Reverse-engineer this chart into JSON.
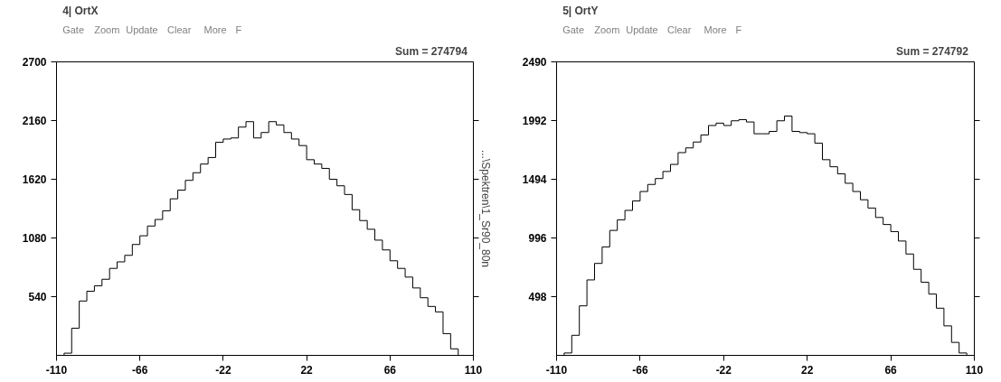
{
  "chart_data": [
    {
      "type": "histogram",
      "title": "4| OrtX",
      "subtitle": "Sum =   274794",
      "y2label": "...\\Spektren\\1_Sr90_80n",
      "annotations": [
        "Gate",
        "Zoom",
        "Update",
        "Clear",
        "More",
        "F"
      ],
      "bins": [
        -110,
        -106,
        -102,
        -98,
        -94,
        -90,
        -86,
        -82,
        -78,
        -74,
        -70,
        -66,
        -62,
        -58,
        -54,
        -50,
        -46,
        -42,
        -38,
        -34,
        -30,
        -26,
        -22,
        -18,
        -14,
        -10,
        -6,
        -2,
        2,
        6,
        10,
        14,
        18,
        22,
        26,
        30,
        34,
        38,
        42,
        46,
        50,
        54,
        58,
        62,
        66,
        70,
        74,
        78,
        82,
        86,
        90,
        94,
        98,
        102,
        106,
        110
      ],
      "values": [
        0,
        20,
        250,
        500,
        590,
        640,
        700,
        800,
        860,
        920,
        1020,
        1100,
        1190,
        1250,
        1330,
        1440,
        1520,
        1610,
        1680,
        1760,
        1820,
        1960,
        1990,
        2000,
        2100,
        2150,
        2000,
        2050,
        2150,
        2120,
        2050,
        1990,
        1930,
        1800,
        1760,
        1720,
        1620,
        1560,
        1480,
        1340,
        1240,
        1160,
        1060,
        970,
        870,
        800,
        720,
        620,
        530,
        450,
        400,
        200,
        60,
        0,
        0
      ],
      "color": "#000000",
      "xlim": [
        -110,
        110
      ],
      "ylim": [
        0,
        2700
      ],
      "xticks": [
        -110,
        -66,
        -22,
        22,
        66,
        110
      ],
      "yticks": [
        540,
        1080,
        1620,
        2160,
        2700
      ]
    },
    {
      "type": "histogram",
      "title": "5| OrtY",
      "subtitle": "Sum =   274792",
      "annotations": [
        "Gate",
        "Zoom",
        "Update",
        "Clear",
        "More",
        "F"
      ],
      "bins": [
        -110,
        -106,
        -102,
        -98,
        -94,
        -90,
        -86,
        -82,
        -78,
        -74,
        -70,
        -66,
        -62,
        -58,
        -54,
        -50,
        -46,
        -42,
        -38,
        -34,
        -30,
        -26,
        -22,
        -18,
        -14,
        -10,
        -6,
        -2,
        2,
        6,
        10,
        14,
        18,
        22,
        26,
        30,
        34,
        38,
        42,
        46,
        50,
        54,
        58,
        62,
        66,
        70,
        74,
        78,
        82,
        86,
        90,
        94,
        98,
        102,
        106,
        110
      ],
      "values": [
        0,
        20,
        170,
        420,
        640,
        780,
        920,
        1060,
        1150,
        1230,
        1310,
        1390,
        1450,
        1500,
        1560,
        1620,
        1720,
        1760,
        1810,
        1870,
        1950,
        1970,
        1950,
        1990,
        2000,
        1980,
        1880,
        1880,
        1900,
        1990,
        2030,
        1900,
        1890,
        1880,
        1800,
        1660,
        1600,
        1540,
        1460,
        1390,
        1320,
        1250,
        1170,
        1110,
        1050,
        970,
        860,
        730,
        620,
        520,
        400,
        250,
        110,
        20,
        0
      ],
      "color": "#000000",
      "xlim": [
        -110,
        110
      ],
      "ylim": [
        0,
        2490
      ],
      "xticks": [
        -110,
        -66,
        -22,
        22,
        66,
        110
      ],
      "yticks": [
        498,
        996,
        1494,
        1992,
        2490
      ]
    }
  ]
}
